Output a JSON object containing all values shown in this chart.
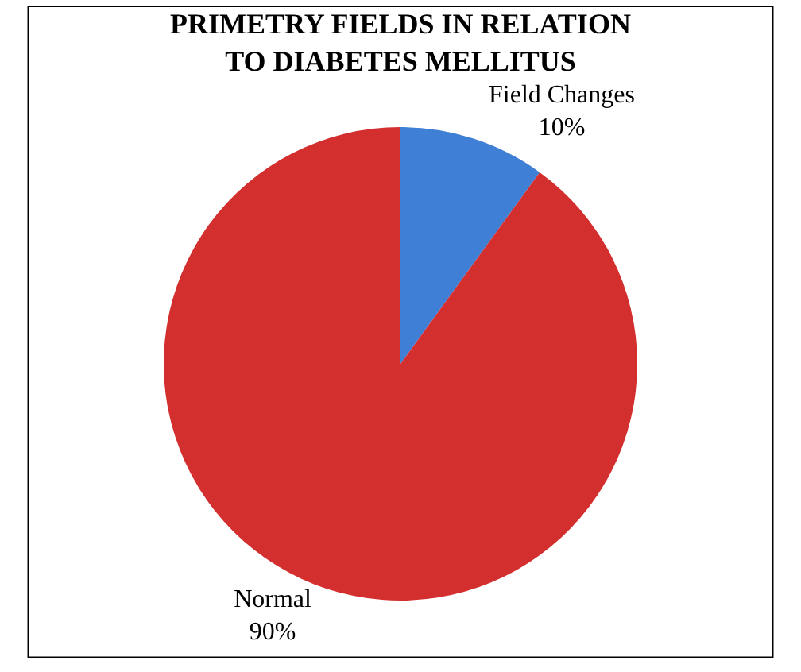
{
  "chart_data": {
    "type": "pie",
    "title": "PRIMETRY FIELDS IN RELATION\nTO DIABETES MELLITUS",
    "categories": [
      "Field Changes",
      "Normal"
    ],
    "values": [
      10,
      90
    ],
    "value_labels": [
      "10%",
      "90%"
    ],
    "colors": [
      "#3f7fd6",
      "#d42f2f"
    ],
    "legend": false
  }
}
